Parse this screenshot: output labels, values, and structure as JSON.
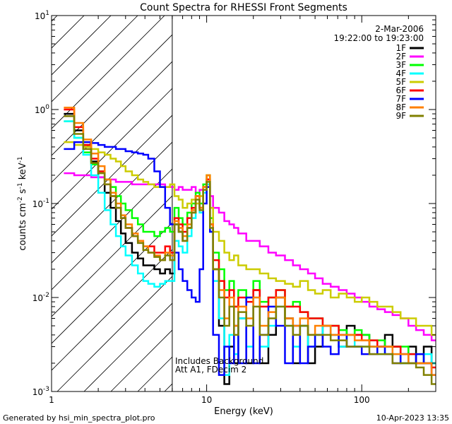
{
  "chart_data": {
    "type": "line",
    "title": "Count Spectra for RHESSI Front Segments",
    "xlabel": "Energy (keV)",
    "ylabel_parts": {
      "a": "counts cm",
      "b": "-2",
      "c": " s",
      "d": "-1",
      "e": " keV",
      "f": "-1"
    },
    "xscale": "log",
    "yscale": "log",
    "xlim": [
      1,
      300
    ],
    "ylim": [
      0.001,
      10
    ],
    "x_ticks": [
      {
        "value": 1,
        "label": "1"
      },
      {
        "value": 10,
        "label": "10"
      },
      {
        "value": 100,
        "label": "100"
      }
    ],
    "y_ticks": [
      {
        "value": 0.001,
        "base": "10",
        "exp": "-3"
      },
      {
        "value": 0.01,
        "base": "10",
        "exp": "-2"
      },
      {
        "value": 0.1,
        "base": "10",
        "exp": "-1"
      },
      {
        "value": 1,
        "base": "10",
        "exp": "0"
      },
      {
        "value": 10,
        "base": "10",
        "exp": "1"
      }
    ],
    "hatched_region": [
      1,
      6
    ],
    "info_date": "2-Mar-2006",
    "info_time": "19:22:00 to 19:23:00",
    "annotation_1": "Includes Background",
    "annotation_2": "Att A1, FDecim 2",
    "footer_left": "Generated by hsi_min_spectra_plot.pro",
    "footer_right": "10-Apr-2023 13:35",
    "bin_edges": [
      1.2,
      1.4,
      1.6,
      1.8,
      2.0,
      2.2,
      2.4,
      2.6,
      2.8,
      3.0,
      3.3,
      3.6,
      3.9,
      4.2,
      4.6,
      5.0,
      5.4,
      5.8,
      6.2,
      6.6,
      7.0,
      7.5,
      8.0,
      8.5,
      9.0,
      9.5,
      10.0,
      10.5,
      11.0,
      12.0,
      13.0,
      14.0,
      15.0,
      16.0,
      18.0,
      20.0,
      22.0,
      25.0,
      28.0,
      32.0,
      36.0,
      40.0,
      45.0,
      50.0,
      56.0,
      63.0,
      71.0,
      80.0,
      90.0,
      100.0,
      112.0,
      126.0,
      141.0,
      158.0,
      178.0,
      200.0,
      224.0,
      251.0,
      282.0,
      300.0
    ],
    "series": [
      {
        "name": "1F",
        "color": "#000000",
        "values": [
          0.9,
          0.6,
          0.42,
          0.28,
          0.19,
          0.13,
          0.09,
          0.065,
          0.048,
          0.038,
          0.03,
          0.026,
          0.022,
          0.022,
          0.02,
          0.018,
          0.02,
          0.018,
          0.06,
          0.05,
          0.04,
          0.055,
          0.08,
          0.12,
          0.09,
          0.15,
          0.18,
          0.06,
          0.02,
          0.005,
          0.0012,
          0.003,
          0.002,
          0.006,
          0.002,
          0.012,
          0.002,
          0.004,
          0.01,
          0.006,
          0.002,
          0.005,
          0.002,
          0.003,
          0.005,
          0.004,
          0.003,
          0.005,
          0.004,
          0.004,
          0.003,
          0.003,
          0.004,
          0.003,
          0.002,
          0.003,
          0.002,
          0.003,
          0.002
        ]
      },
      {
        "name": "2F",
        "color": "#ff00ff",
        "values": [
          0.21,
          0.2,
          0.2,
          0.19,
          0.19,
          0.18,
          0.18,
          0.17,
          0.17,
          0.17,
          0.16,
          0.16,
          0.16,
          0.16,
          0.16,
          0.16,
          0.15,
          0.15,
          0.14,
          0.15,
          0.14,
          0.14,
          0.15,
          0.13,
          0.14,
          0.13,
          0.16,
          0.12,
          0.09,
          0.08,
          0.065,
          0.06,
          0.055,
          0.048,
          0.04,
          0.04,
          0.035,
          0.03,
          0.028,
          0.025,
          0.022,
          0.02,
          0.018,
          0.016,
          0.014,
          0.013,
          0.012,
          0.011,
          0.01,
          0.009,
          0.008,
          0.0075,
          0.007,
          0.0065,
          0.006,
          0.005,
          0.0045,
          0.004,
          0.0035
        ]
      },
      {
        "name": "3F",
        "color": "#00ff00",
        "values": [
          0.75,
          0.5,
          0.35,
          0.26,
          0.22,
          0.18,
          0.15,
          0.12,
          0.1,
          0.085,
          0.07,
          0.06,
          0.05,
          0.05,
          0.045,
          0.05,
          0.055,
          0.05,
          0.09,
          0.07,
          0.06,
          0.08,
          0.1,
          0.13,
          0.1,
          0.16,
          0.2,
          0.07,
          0.03,
          0.02,
          0.012,
          0.015,
          0.008,
          0.012,
          0.01,
          0.015,
          0.009,
          0.01,
          0.012,
          0.008,
          0.009,
          0.007,
          0.006,
          0.006,
          0.005,
          0.005,
          0.0045,
          0.004,
          0.0045,
          0.004,
          0.0035,
          0.0035,
          0.003,
          0.003,
          0.003,
          0.0025,
          0.0025,
          0.002,
          0.002
        ]
      },
      {
        "name": "4F",
        "color": "#00ffff",
        "values": [
          0.75,
          0.5,
          0.33,
          0.2,
          0.13,
          0.085,
          0.06,
          0.045,
          0.035,
          0.028,
          0.022,
          0.018,
          0.015,
          0.014,
          0.013,
          0.014,
          0.015,
          0.015,
          0.04,
          0.035,
          0.03,
          0.045,
          0.07,
          0.1,
          0.08,
          0.13,
          0.16,
          0.05,
          0.015,
          0.006,
          0.0015,
          0.004,
          0.0025,
          0.006,
          0.003,
          0.01,
          0.003,
          0.005,
          0.008,
          0.005,
          0.003,
          0.005,
          0.003,
          0.004,
          0.005,
          0.004,
          0.003,
          0.004,
          0.003,
          0.003,
          0.003,
          0.0025,
          0.003,
          0.0025,
          0.002,
          0.0025,
          0.002,
          0.0025,
          0.002
        ]
      },
      {
        "name": "5F",
        "color": "#cccc00",
        "values": [
          0.45,
          0.42,
          0.4,
          0.38,
          0.35,
          0.33,
          0.3,
          0.28,
          0.25,
          0.22,
          0.2,
          0.18,
          0.17,
          0.16,
          0.15,
          0.15,
          0.15,
          0.16,
          0.12,
          0.11,
          0.09,
          0.1,
          0.11,
          0.1,
          0.12,
          0.15,
          0.2,
          0.09,
          0.05,
          0.04,
          0.03,
          0.025,
          0.028,
          0.022,
          0.02,
          0.02,
          0.018,
          0.016,
          0.015,
          0.014,
          0.013,
          0.015,
          0.012,
          0.011,
          0.012,
          0.01,
          0.011,
          0.01,
          0.009,
          0.01,
          0.009,
          0.008,
          0.008,
          0.007,
          0.006,
          0.006,
          0.005,
          0.005,
          0.004
        ]
      },
      {
        "name": "6F",
        "color": "#ff0000",
        "values": [
          1.0,
          0.65,
          0.42,
          0.3,
          0.22,
          0.16,
          0.12,
          0.09,
          0.07,
          0.055,
          0.045,
          0.04,
          0.035,
          0.035,
          0.03,
          0.03,
          0.035,
          0.03,
          0.07,
          0.06,
          0.05,
          0.07,
          0.09,
          0.12,
          0.09,
          0.15,
          0.18,
          0.06,
          0.025,
          0.015,
          0.01,
          0.012,
          0.008,
          0.01,
          0.009,
          0.012,
          0.008,
          0.01,
          0.012,
          0.008,
          0.008,
          0.007,
          0.006,
          0.006,
          0.005,
          0.005,
          0.004,
          0.004,
          0.004,
          0.0035,
          0.0035,
          0.003,
          0.003,
          0.003,
          0.0025,
          0.0025,
          0.002,
          0.002,
          0.0018
        ]
      },
      {
        "name": "7F",
        "color": "#0000ff",
        "values": [
          0.38,
          0.45,
          0.45,
          0.44,
          0.42,
          0.4,
          0.4,
          0.38,
          0.38,
          0.36,
          0.35,
          0.34,
          0.33,
          0.3,
          0.22,
          0.15,
          0.09,
          0.06,
          0.03,
          0.02,
          0.015,
          0.012,
          0.01,
          0.009,
          0.02,
          0.1,
          0.15,
          0.05,
          0.004,
          0.0015,
          0.003,
          0.002,
          0.005,
          0.002,
          0.01,
          0.002,
          0.004,
          0.008,
          0.005,
          0.002,
          0.005,
          0.002,
          0.003,
          0.004,
          0.003,
          0.0025,
          0.004,
          0.003,
          0.003,
          0.0025,
          0.0025,
          0.003,
          0.0025,
          0.002,
          0.0025,
          0.002,
          0.0025,
          0.002,
          0.0015
        ]
      },
      {
        "name": "8F",
        "color": "#ff8000",
        "values": [
          1.05,
          0.72,
          0.48,
          0.34,
          0.25,
          0.18,
          0.13,
          0.1,
          0.075,
          0.06,
          0.048,
          0.04,
          0.035,
          0.03,
          0.028,
          0.025,
          0.03,
          0.028,
          0.065,
          0.055,
          0.045,
          0.06,
          0.085,
          0.12,
          0.09,
          0.15,
          0.2,
          0.06,
          0.02,
          0.012,
          0.006,
          0.01,
          0.005,
          0.008,
          0.006,
          0.01,
          0.005,
          0.007,
          0.01,
          0.006,
          0.005,
          0.006,
          0.004,
          0.005,
          0.005,
          0.004,
          0.004,
          0.004,
          0.0035,
          0.0035,
          0.003,
          0.003,
          0.003,
          0.0025,
          0.0025,
          0.002,
          0.002,
          0.002,
          0.0015
        ]
      },
      {
        "name": "9F",
        "color": "#808000",
        "values": [
          0.85,
          0.55,
          0.38,
          0.27,
          0.21,
          0.16,
          0.12,
          0.09,
          0.07,
          0.055,
          0.045,
          0.038,
          0.032,
          0.03,
          0.027,
          0.025,
          0.028,
          0.025,
          0.06,
          0.05,
          0.04,
          0.055,
          0.08,
          0.11,
          0.085,
          0.14,
          0.17,
          0.055,
          0.02,
          0.01,
          0.005,
          0.008,
          0.004,
          0.007,
          0.005,
          0.008,
          0.004,
          0.006,
          0.008,
          0.005,
          0.004,
          0.005,
          0.004,
          0.004,
          0.004,
          0.0035,
          0.0035,
          0.003,
          0.003,
          0.003,
          0.0025,
          0.0025,
          0.0025,
          0.002,
          0.002,
          0.002,
          0.0018,
          0.0015,
          0.0012
        ]
      }
    ]
  }
}
